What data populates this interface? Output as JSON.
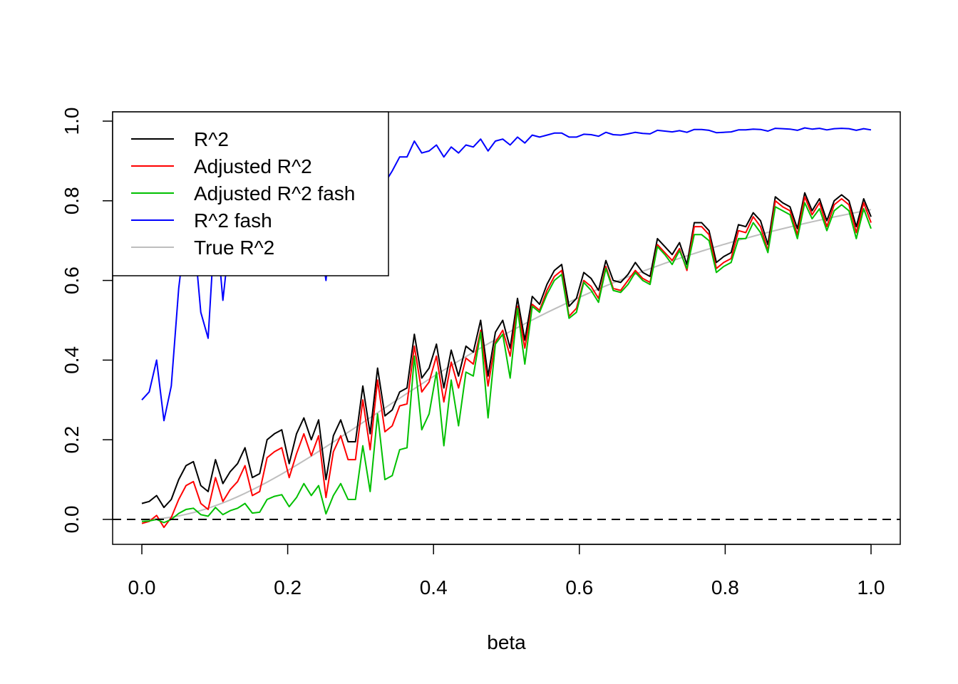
{
  "chart_data": {
    "type": "line",
    "title": "",
    "xlabel": "beta",
    "ylabel": "",
    "xlim": [
      0.0,
      1.0
    ],
    "ylim": [
      -0.06,
      1.02
    ],
    "xticks": [
      0.0,
      0.2,
      0.4,
      0.6,
      0.8,
      1.0
    ],
    "xtick_labels": [
      "0.0",
      "0.2",
      "0.4",
      "0.6",
      "0.8",
      "1.0"
    ],
    "yticks": [
      0.0,
      0.2,
      0.4,
      0.6,
      0.8,
      1.0
    ],
    "ytick_labels": [
      "0.0",
      "0.2",
      "0.4",
      "0.6",
      "0.8",
      "1.0"
    ],
    "grid": false,
    "legend_position": "top-left",
    "reference_lines": [
      {
        "y": 0.0,
        "style": "dashed",
        "color": "#000000"
      }
    ],
    "x_step": 0.01,
    "series": [
      {
        "name": "R^2",
        "color": "#000000",
        "values": [
          0.04,
          0.045,
          0.06,
          0.03,
          0.05,
          0.1,
          0.135,
          0.145,
          0.085,
          0.07,
          0.15,
          0.09,
          0.12,
          0.14,
          0.18,
          0.105,
          0.115,
          0.2,
          0.215,
          0.225,
          0.14,
          0.215,
          0.255,
          0.2,
          0.25,
          0.1,
          0.21,
          0.25,
          0.195,
          0.195,
          0.335,
          0.215,
          0.38,
          0.26,
          0.275,
          0.32,
          0.33,
          0.465,
          0.355,
          0.38,
          0.44,
          0.33,
          0.425,
          0.36,
          0.435,
          0.42,
          0.5,
          0.36,
          0.47,
          0.5,
          0.43,
          0.555,
          0.45,
          0.56,
          0.54,
          0.59,
          0.625,
          0.64,
          0.535,
          0.555,
          0.62,
          0.605,
          0.575,
          0.65,
          0.6,
          0.595,
          0.615,
          0.645,
          0.62,
          0.61,
          0.705,
          0.685,
          0.665,
          0.695,
          0.64,
          0.745,
          0.745,
          0.725,
          0.645,
          0.66,
          0.67,
          0.74,
          0.735,
          0.77,
          0.75,
          0.69,
          0.81,
          0.795,
          0.785,
          0.73,
          0.82,
          0.775,
          0.805,
          0.75,
          0.8,
          0.815,
          0.8,
          0.735,
          0.805,
          0.76
        ]
      },
      {
        "name": "Adjusted R^2",
        "color": "#ff0000",
        "values": [
          -0.01,
          -0.005,
          0.01,
          -0.02,
          0.005,
          0.05,
          0.085,
          0.095,
          0.04,
          0.025,
          0.105,
          0.045,
          0.075,
          0.095,
          0.135,
          0.06,
          0.07,
          0.155,
          0.17,
          0.18,
          0.105,
          0.165,
          0.215,
          0.16,
          0.21,
          0.055,
          0.17,
          0.21,
          0.15,
          0.15,
          0.3,
          0.175,
          0.35,
          0.22,
          0.235,
          0.285,
          0.29,
          0.435,
          0.32,
          0.345,
          0.41,
          0.295,
          0.395,
          0.33,
          0.405,
          0.39,
          0.475,
          0.335,
          0.445,
          0.475,
          0.41,
          0.535,
          0.43,
          0.54,
          0.525,
          0.575,
          0.61,
          0.625,
          0.51,
          0.53,
          0.6,
          0.585,
          0.555,
          0.635,
          0.58,
          0.575,
          0.6,
          0.625,
          0.605,
          0.595,
          0.69,
          0.67,
          0.65,
          0.68,
          0.625,
          0.735,
          0.735,
          0.715,
          0.63,
          0.645,
          0.655,
          0.725,
          0.72,
          0.76,
          0.735,
          0.675,
          0.8,
          0.785,
          0.775,
          0.715,
          0.81,
          0.765,
          0.795,
          0.735,
          0.79,
          0.805,
          0.79,
          0.72,
          0.795,
          0.745
        ]
      },
      {
        "name": "Adjusted R^2 fash",
        "color": "#00c000",
        "values": [
          -0.005,
          -0.004,
          0.0,
          -0.008,
          0.0,
          0.015,
          0.025,
          0.028,
          0.012,
          0.008,
          0.03,
          0.012,
          0.022,
          0.028,
          0.04,
          0.016,
          0.018,
          0.05,
          0.058,
          0.062,
          0.032,
          0.055,
          0.09,
          0.06,
          0.085,
          0.014,
          0.06,
          0.09,
          0.05,
          0.05,
          0.185,
          0.07,
          0.265,
          0.1,
          0.11,
          0.175,
          0.18,
          0.41,
          0.225,
          0.265,
          0.37,
          0.185,
          0.35,
          0.235,
          0.37,
          0.36,
          0.47,
          0.255,
          0.44,
          0.465,
          0.355,
          0.53,
          0.39,
          0.535,
          0.52,
          0.565,
          0.6,
          0.615,
          0.505,
          0.52,
          0.595,
          0.575,
          0.545,
          0.63,
          0.575,
          0.57,
          0.59,
          0.62,
          0.6,
          0.59,
          0.685,
          0.665,
          0.64,
          0.675,
          0.63,
          0.715,
          0.715,
          0.7,
          0.62,
          0.635,
          0.645,
          0.705,
          0.705,
          0.745,
          0.72,
          0.67,
          0.785,
          0.775,
          0.765,
          0.705,
          0.795,
          0.755,
          0.78,
          0.725,
          0.775,
          0.79,
          0.775,
          0.705,
          0.78,
          0.73
        ]
      },
      {
        "name": "R^2 fash",
        "color": "#0000ff",
        "values": [
          0.3,
          0.32,
          0.4,
          0.248,
          0.335,
          0.58,
          0.735,
          0.73,
          0.52,
          0.455,
          0.765,
          0.55,
          0.72,
          0.74,
          0.82,
          0.64,
          0.645,
          0.78,
          0.8,
          0.815,
          0.67,
          0.79,
          0.82,
          0.7,
          0.73,
          0.6,
          0.785,
          0.82,
          0.72,
          0.72,
          0.86,
          0.75,
          0.885,
          0.845,
          0.875,
          0.91,
          0.91,
          0.95,
          0.92,
          0.925,
          0.94,
          0.91,
          0.935,
          0.92,
          0.94,
          0.935,
          0.955,
          0.925,
          0.95,
          0.955,
          0.94,
          0.96,
          0.945,
          0.965,
          0.96,
          0.965,
          0.97,
          0.97,
          0.96,
          0.96,
          0.967,
          0.966,
          0.962,
          0.972,
          0.966,
          0.965,
          0.968,
          0.972,
          0.969,
          0.968,
          0.977,
          0.975,
          0.973,
          0.976,
          0.972,
          0.979,
          0.979,
          0.977,
          0.971,
          0.972,
          0.973,
          0.978,
          0.978,
          0.98,
          0.979,
          0.975,
          0.982,
          0.981,
          0.98,
          0.977,
          0.983,
          0.98,
          0.982,
          0.978,
          0.981,
          0.982,
          0.981,
          0.977,
          0.981,
          0.978
        ]
      },
      {
        "name": "True R^2",
        "color": "#bebebe",
        "values": "computed"
      }
    ]
  }
}
